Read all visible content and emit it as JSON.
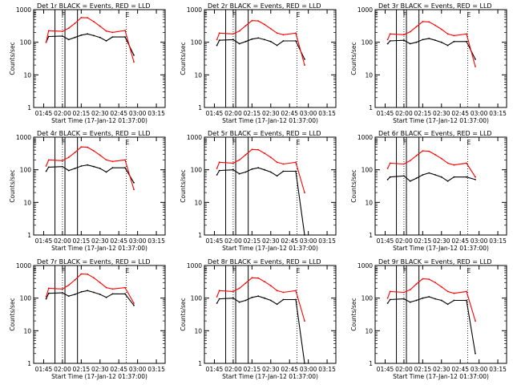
{
  "chart_data": [
    {
      "type": "line",
      "title": "Det 1r BLACK = Events, RED = LLD",
      "xlabel": "Start Time (17-Jan-12 01:37:00)",
      "ylabel": "Counts/sec",
      "yscale": "log",
      "ylim": [
        1,
        1000
      ],
      "xlim_minutes": [
        0,
        105
      ],
      "x_tick_labels": [
        "01:45",
        "02:00",
        "02:15",
        "02:30",
        "02:45",
        "03:00",
        "03:15"
      ],
      "y_tick_labels": [
        "1",
        "10",
        "100",
        "1000"
      ],
      "markers": [
        {
          "label": "E",
          "time": "01:37"
        },
        {
          "label": "F",
          "time": "02:00"
        },
        {
          "label": "E",
          "time": "02:51"
        }
      ],
      "series": [
        {
          "name": "Events",
          "color": "#000000",
          "x": [
            "01:47",
            "01:49",
            "02:00",
            "02:05",
            "02:10",
            "02:15",
            "02:20",
            "02:25",
            "02:30",
            "02:35",
            "02:40",
            "02:50",
            "02:57"
          ],
          "values": [
            100,
            150,
            155,
            120,
            140,
            165,
            180,
            160,
            140,
            110,
            145,
            145,
            40
          ]
        },
        {
          "name": "LLD",
          "color": "#ff0000",
          "x": [
            "01:47",
            "01:49",
            "02:00",
            "02:05",
            "02:10",
            "02:15",
            "02:20",
            "02:25",
            "02:30",
            "02:35",
            "02:40",
            "02:50",
            "02:57"
          ],
          "values": [
            100,
            225,
            215,
            270,
            380,
            570,
            560,
            430,
            310,
            220,
            200,
            230,
            25
          ]
        }
      ]
    },
    {
      "type": "line",
      "title": "Det 2r BLACK = Events, RED = LLD",
      "xlabel": "Start Time (17-Jan-12 01:37:00)",
      "ylabel": "Counts/sec",
      "yscale": "log",
      "ylim": [
        1,
        1000
      ],
      "xlim_minutes": [
        0,
        105
      ],
      "x_tick_labels": [
        "01:45",
        "02:00",
        "02:15",
        "02:30",
        "02:45",
        "03:00",
        "03:15"
      ],
      "y_tick_labels": [
        "1",
        "10",
        "100",
        "1000"
      ],
      "markers": [
        {
          "label": "E",
          "time": "01:37"
        },
        {
          "label": "F",
          "time": "02:00"
        },
        {
          "label": "E",
          "time": "02:51"
        }
      ],
      "series": [
        {
          "name": "Events",
          "color": "#000000",
          "x": [
            "01:47",
            "01:49",
            "02:00",
            "02:05",
            "02:10",
            "02:15",
            "02:20",
            "02:25",
            "02:30",
            "02:35",
            "02:40",
            "02:50",
            "02:57"
          ],
          "values": [
            80,
            115,
            120,
            90,
            105,
            125,
            135,
            120,
            105,
            80,
            110,
            110,
            30
          ]
        },
        {
          "name": "LLD",
          "color": "#ff0000",
          "x": [
            "01:47",
            "01:49",
            "02:00",
            "02:05",
            "02:10",
            "02:15",
            "02:20",
            "02:25",
            "02:30",
            "02:35",
            "02:40",
            "02:50",
            "02:57"
          ],
          "values": [
            120,
            190,
            180,
            220,
            320,
            460,
            450,
            350,
            260,
            190,
            170,
            190,
            20
          ]
        }
      ]
    },
    {
      "type": "line",
      "title": "Det 3r BLACK = Events, RED = LLD",
      "xlabel": "Start Time (17-Jan-12 01:37:00)",
      "ylabel": "Counts/sec",
      "yscale": "log",
      "ylim": [
        1,
        1000
      ],
      "xlim_minutes": [
        0,
        105
      ],
      "x_tick_labels": [
        "01:45",
        "02:00",
        "02:15",
        "02:30",
        "02:45",
        "03:00",
        "03:15"
      ],
      "y_tick_labels": [
        "1",
        "10",
        "100",
        "1000"
      ],
      "markers": [
        {
          "label": "E",
          "time": "01:37"
        },
        {
          "label": "F",
          "time": "02:00"
        },
        {
          "label": "E",
          "time": "02:51"
        }
      ],
      "series": [
        {
          "name": "Events",
          "color": "#000000",
          "x": [
            "01:47",
            "01:49",
            "02:00",
            "02:05",
            "02:10",
            "02:15",
            "02:20",
            "02:25",
            "02:30",
            "02:35",
            "02:40",
            "02:50",
            "02:57"
          ],
          "values": [
            90,
            110,
            115,
            90,
            100,
            120,
            130,
            115,
            100,
            80,
            105,
            105,
            30
          ]
        },
        {
          "name": "LLD",
          "color": "#ff0000",
          "x": [
            "01:47",
            "01:49",
            "02:00",
            "02:05",
            "02:10",
            "02:15",
            "02:20",
            "02:25",
            "02:30",
            "02:35",
            "02:40",
            "02:50",
            "02:57"
          ],
          "values": [
            120,
            180,
            170,
            210,
            300,
            430,
            420,
            330,
            250,
            180,
            160,
            180,
            18
          ]
        }
      ]
    },
    {
      "type": "line",
      "title": "Det 4r BLACK = Events, RED = LLD",
      "xlabel": "Start Time (17-Jan-12 01:37:00)",
      "ylabel": "Counts/sec",
      "yscale": "log",
      "ylim": [
        1,
        1000
      ],
      "xlim_minutes": [
        0,
        105
      ],
      "x_tick_labels": [
        "01:45",
        "02:00",
        "02:15",
        "02:30",
        "02:45",
        "03:00",
        "03:15"
      ],
      "y_tick_labels": [
        "1",
        "10",
        "100",
        "1000"
      ],
      "markers": [
        {
          "label": "E",
          "time": "01:37"
        },
        {
          "label": "F",
          "time": "02:00"
        },
        {
          "label": "E",
          "time": "02:51"
        }
      ],
      "series": [
        {
          "name": "Events",
          "color": "#000000",
          "x": [
            "01:47",
            "01:49",
            "02:00",
            "02:05",
            "02:10",
            "02:15",
            "02:20",
            "02:25",
            "02:30",
            "02:35",
            "02:40",
            "02:50",
            "02:57"
          ],
          "values": [
            90,
            120,
            125,
            95,
            110,
            130,
            140,
            125,
            110,
            85,
            115,
            115,
            40
          ]
        },
        {
          "name": "LLD",
          "color": "#ff0000",
          "x": [
            "01:47",
            "01:49",
            "02:00",
            "02:05",
            "02:10",
            "02:15",
            "02:20",
            "02:25",
            "02:30",
            "02:35",
            "02:40",
            "02:50",
            "02:57"
          ],
          "values": [
            130,
            200,
            190,
            240,
            340,
            500,
            490,
            380,
            280,
            200,
            180,
            200,
            25
          ]
        }
      ]
    },
    {
      "type": "line",
      "title": "Det 5r BLACK = Events, RED = LLD",
      "xlabel": "Start Time (17-Jan-12 01:37:00)",
      "ylabel": "Counts/sec",
      "yscale": "log",
      "ylim": [
        1,
        1000
      ],
      "xlim_minutes": [
        0,
        105
      ],
      "x_tick_labels": [
        "01:45",
        "02:00",
        "02:15",
        "02:30",
        "02:45",
        "03:00",
        "03:15"
      ],
      "y_tick_labels": [
        "1",
        "10",
        "100",
        "1000"
      ],
      "markers": [
        {
          "label": "E",
          "time": "01:37"
        },
        {
          "label": "F",
          "time": "02:00"
        },
        {
          "label": "E",
          "time": "02:51"
        }
      ],
      "series": [
        {
          "name": "Events",
          "color": "#000000",
          "x": [
            "01:47",
            "01:49",
            "02:00",
            "02:05",
            "02:10",
            "02:15",
            "02:20",
            "02:25",
            "02:30",
            "02:35",
            "02:40",
            "02:50",
            "02:57"
          ],
          "values": [
            70,
            95,
            100,
            75,
            85,
            105,
            115,
            100,
            85,
            65,
            90,
            90,
            1
          ]
        },
        {
          "name": "LLD",
          "color": "#ff0000",
          "x": [
            "01:47",
            "01:49",
            "02:00",
            "02:05",
            "02:10",
            "02:15",
            "02:20",
            "02:25",
            "02:30",
            "02:35",
            "02:40",
            "02:50",
            "02:57"
          ],
          "values": [
            110,
            170,
            160,
            200,
            290,
            420,
            410,
            320,
            240,
            170,
            150,
            170,
            20
          ]
        }
      ]
    },
    {
      "type": "line",
      "title": "Det 6r BLACK = Events, RED = LLD",
      "xlabel": "Start Time (17-Jan-12 01:37:00)",
      "ylabel": "Counts/sec",
      "yscale": "log",
      "ylim": [
        1,
        1000
      ],
      "xlim_minutes": [
        0,
        105
      ],
      "x_tick_labels": [
        "01:45",
        "02:00",
        "02:15",
        "02:30",
        "02:45",
        "03:00",
        "03:15"
      ],
      "y_tick_labels": [
        "1",
        "10",
        "100",
        "1000"
      ],
      "markers": [
        {
          "label": "E",
          "time": "01:37"
        },
        {
          "label": "F",
          "time": "02:00"
        },
        {
          "label": "E",
          "time": "02:51"
        }
      ],
      "series": [
        {
          "name": "Events",
          "color": "#000000",
          "x": [
            "01:47",
            "01:49",
            "02:00",
            "02:05",
            "02:10",
            "02:15",
            "02:20",
            "02:25",
            "02:30",
            "02:35",
            "02:40",
            "02:50",
            "02:57"
          ],
          "values": [
            50,
            60,
            65,
            45,
            55,
            70,
            80,
            70,
            60,
            45,
            60,
            60,
            50
          ]
        },
        {
          "name": "LLD",
          "color": "#ff0000",
          "x": [
            "01:47",
            "01:49",
            "02:00",
            "02:05",
            "02:10",
            "02:15",
            "02:20",
            "02:25",
            "02:30",
            "02:35",
            "02:40",
            "02:50",
            "02:57"
          ],
          "values": [
            110,
            160,
            150,
            190,
            270,
            380,
            370,
            290,
            220,
            160,
            140,
            160,
            60
          ]
        }
      ]
    },
    {
      "type": "line",
      "title": "Det 7r BLACK = Events, RED = LLD",
      "xlabel": "Start Time (17-Jan-12 01:37:00)",
      "ylabel": "Counts/sec",
      "yscale": "log",
      "ylim": [
        1,
        1000
      ],
      "xlim_minutes": [
        0,
        105
      ],
      "x_tick_labels": [
        "01:45",
        "02:00",
        "02:15",
        "02:30",
        "02:45",
        "03:00",
        "03:15"
      ],
      "y_tick_labels": [
        "1",
        "10",
        "100",
        "1000"
      ],
      "markers": [
        {
          "label": "E",
          "time": "01:37"
        },
        {
          "label": "F",
          "time": "02:00"
        },
        {
          "label": "E",
          "time": "02:51"
        }
      ],
      "series": [
        {
          "name": "Events",
          "color": "#000000",
          "x": [
            "01:47",
            "01:49",
            "02:00",
            "02:05",
            "02:10",
            "02:15",
            "02:20",
            "02:25",
            "02:30",
            "02:35",
            "02:40",
            "02:50",
            "02:57"
          ],
          "values": [
            95,
            140,
            145,
            115,
            130,
            155,
            170,
            150,
            130,
            105,
            135,
            135,
            60
          ]
        },
        {
          "name": "LLD",
          "color": "#ff0000",
          "x": [
            "01:47",
            "01:49",
            "02:00",
            "02:05",
            "02:10",
            "02:15",
            "02:20",
            "02:25",
            "02:30",
            "02:35",
            "02:40",
            "02:50",
            "02:57"
          ],
          "values": [
            110,
            200,
            190,
            250,
            360,
            550,
            540,
            420,
            300,
            210,
            190,
            210,
            70
          ]
        }
      ]
    },
    {
      "type": "line",
      "title": "Det 8r BLACK = Events, RED = LLD",
      "xlabel": "Start Time (17-Jan-12 01:37:00)",
      "ylabel": "Counts/sec",
      "yscale": "log",
      "ylim": [
        1,
        1000
      ],
      "xlim_minutes": [
        0,
        105
      ],
      "x_tick_labels": [
        "01:45",
        "02:00",
        "02:15",
        "02:30",
        "02:45",
        "03:00",
        "03:15"
      ],
      "y_tick_labels": [
        "1",
        "10",
        "100",
        "1000"
      ],
      "markers": [
        {
          "label": "E",
          "time": "01:37"
        },
        {
          "label": "F",
          "time": "02:00"
        },
        {
          "label": "E",
          "time": "02:51"
        }
      ],
      "series": [
        {
          "name": "Events",
          "color": "#000000",
          "x": [
            "01:47",
            "01:49",
            "02:00",
            "02:05",
            "02:10",
            "02:15",
            "02:20",
            "02:25",
            "02:30",
            "02:35",
            "02:40",
            "02:50",
            "02:57"
          ],
          "values": [
            70,
            95,
            100,
            75,
            85,
            105,
            115,
            100,
            85,
            65,
            90,
            90,
            1
          ]
        },
        {
          "name": "LLD",
          "color": "#ff0000",
          "x": [
            "01:47",
            "01:49",
            "02:00",
            "02:05",
            "02:10",
            "02:15",
            "02:20",
            "02:25",
            "02:30",
            "02:35",
            "02:40",
            "02:50",
            "02:57"
          ],
          "values": [
            110,
            170,
            160,
            200,
            290,
            420,
            410,
            320,
            240,
            170,
            150,
            170,
            20
          ]
        }
      ]
    },
    {
      "type": "line",
      "title": "Det 9r BLACK = Events, RED = LLD",
      "xlabel": "Start Time (17-Jan-12 01:37:00)",
      "ylabel": "Counts/sec",
      "yscale": "log",
      "ylim": [
        1,
        1000
      ],
      "xlim_minutes": [
        0,
        105
      ],
      "x_tick_labels": [
        "01:45",
        "02:00",
        "02:15",
        "02:30",
        "02:45",
        "03:00",
        "03:15"
      ],
      "y_tick_labels": [
        "1",
        "10",
        "100",
        "1000"
      ],
      "markers": [
        {
          "label": "E",
          "time": "01:37"
        },
        {
          "label": "F",
          "time": "02:00"
        },
        {
          "label": "E",
          "time": "02:51"
        }
      ],
      "series": [
        {
          "name": "Events",
          "color": "#000000",
          "x": [
            "01:47",
            "01:49",
            "02:00",
            "02:05",
            "02:10",
            "02:15",
            "02:20",
            "02:25",
            "02:30",
            "02:35",
            "02:40",
            "02:50",
            "02:57"
          ],
          "values": [
            70,
            90,
            95,
            75,
            85,
            100,
            110,
            95,
            85,
            65,
            85,
            85,
            2
          ]
        },
        {
          "name": "LLD",
          "color": "#ff0000",
          "x": [
            "01:47",
            "01:49",
            "02:00",
            "02:05",
            "02:10",
            "02:15",
            "02:20",
            "02:25",
            "02:30",
            "02:35",
            "02:40",
            "02:50",
            "02:57"
          ],
          "values": [
            100,
            160,
            150,
            180,
            270,
            390,
            380,
            300,
            220,
            160,
            140,
            160,
            20
          ]
        }
      ]
    }
  ]
}
